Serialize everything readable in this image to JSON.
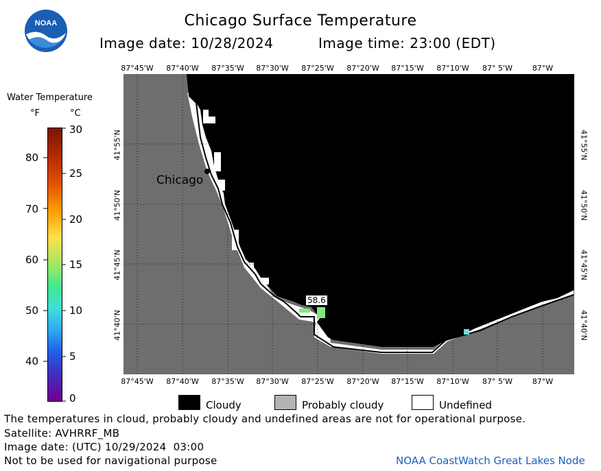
{
  "header": {
    "title": "Chicago Surface Temperature",
    "image_date": "Image date: 10/28/2024",
    "image_time": "Image time: 23:00 (EDT)"
  },
  "logo_text": "NOAA",
  "map": {
    "lon_labels": [
      "87°45'W",
      "87°40'W",
      "87°35'W",
      "87°30'W",
      "87°25'W",
      "87°20'W",
      "87°15'W",
      "87°10'W",
      "87° 5'W",
      "87°W"
    ],
    "lat_labels": [
      "41°55'N",
      "41°50'N",
      "41°45'N",
      "41°40'N"
    ],
    "city_label": "Chicago",
    "temp_label": "58.6"
  },
  "colorbar": {
    "title": "Water Temperature",
    "unit_f": "°F",
    "unit_c": "°C",
    "f_ticks": [
      "80",
      "70",
      "60",
      "50",
      "40"
    ],
    "c_ticks": [
      "30",
      "25",
      "20",
      "15",
      "10",
      "5",
      "0"
    ]
  },
  "legend": {
    "cloudy": "Cloudy",
    "probably_cloudy": "Probably cloudy",
    "undefined": "Undefined"
  },
  "footer": {
    "note": "The temperatures in cloud, probably cloudy and undefined areas are not for operational purpose.",
    "satellite": "Satellite: AVHRRF_MB",
    "utc_date": "Image date: (UTC) 10/29/2024  03:00",
    "nav_warning": "Not to be used for navigational purpose",
    "credit": "NOAA CoastWatch Great Lakes Node"
  },
  "colors": {
    "land": "#6e6e6e",
    "cloudy": "#000000",
    "probably_cloudy": "#b4b4b4",
    "undefined": "#ffffff",
    "warm_water": "#80e880",
    "cool_water": "#70d8e8"
  }
}
